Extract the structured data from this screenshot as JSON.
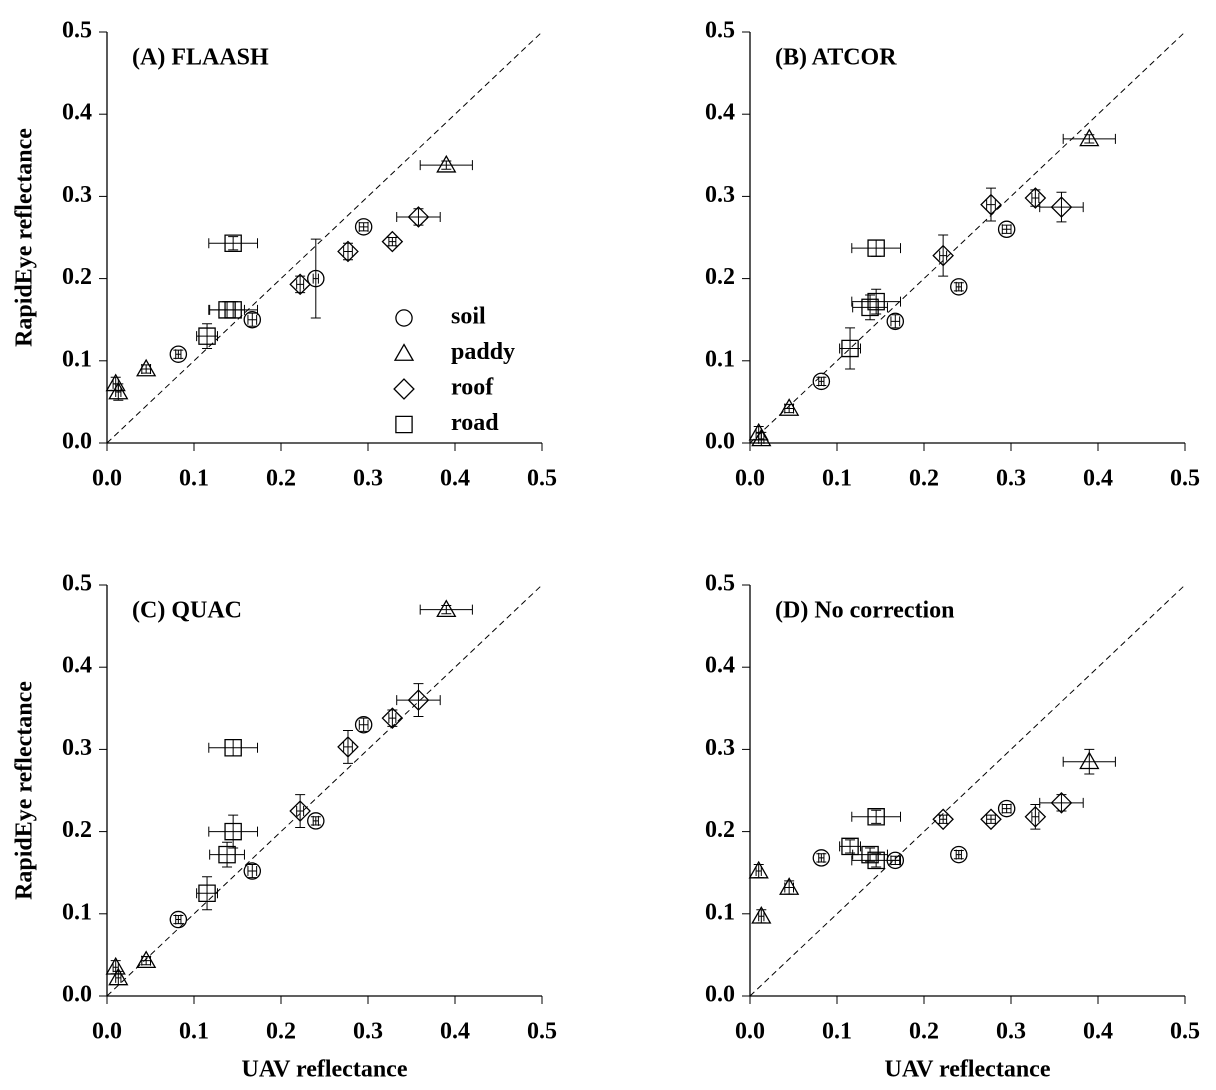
{
  "chart_data": [
    {
      "type": "scatter",
      "annotation": "(A) FLAASH",
      "ylabel": "RapidEye reflectance",
      "xlim": [
        0,
        0.5
      ],
      "ylim": [
        0,
        0.5
      ],
      "xticks": [
        {
          "value": 0,
          "label": "0.0"
        },
        0.1,
        0.2,
        0.3,
        0.4,
        0.5
      ],
      "yticks": [
        {
          "value": 0,
          "label": "0.0"
        },
        0.1,
        0.2,
        0.3,
        0.4,
        0.5
      ],
      "legend": "lower right",
      "color": "#000000",
      "series": [
        {
          "name": "soil",
          "marker": "circle",
          "x": [
            0.082,
            0.167,
            0.24,
            0.295
          ],
          "xerr": [
            0.003,
            0.005,
            0.003,
            0.005
          ],
          "values": [
            0.108,
            0.15,
            0.2,
            0.263
          ],
          "yerr": [
            0.005,
            0.008,
            0.048,
            0.005
          ]
        },
        {
          "name": "paddy",
          "marker": "triangle",
          "x": [
            0.01,
            0.013,
            0.045,
            0.39
          ],
          "xerr": [
            0.003,
            0.003,
            0.005,
            0.03
          ],
          "values": [
            0.072,
            0.062,
            0.09,
            0.338
          ],
          "yerr": [
            0.008,
            0.01,
            0.005,
            0.005
          ]
        },
        {
          "name": "roof",
          "marker": "diamond",
          "x": [
            0.222,
            0.277,
            0.328,
            0.358
          ],
          "xerr": [
            0.004,
            0.005,
            0.004,
            0.025
          ],
          "values": [
            0.193,
            0.233,
            0.245,
            0.275
          ],
          "yerr": [
            0.01,
            0.01,
            0.005,
            0.01
          ]
        },
        {
          "name": "road",
          "marker": "square",
          "x": [
            0.115,
            0.138,
            0.145,
            0.145
          ],
          "xerr": [
            0.012,
            0.02,
            0.028,
            0.028
          ],
          "values": [
            0.13,
            0.162,
            0.162,
            0.243
          ],
          "yerr": [
            0.015,
            0.01,
            0.01,
            0.008
          ]
        }
      ]
    },
    {
      "type": "scatter",
      "annotation": "(B) ATCOR",
      "xlim": [
        0,
        0.5
      ],
      "ylim": [
        0,
        0.5
      ],
      "xticks": [
        {
          "value": 0,
          "label": "0.0"
        },
        0.1,
        0.2,
        0.3,
        0.4,
        0.5
      ],
      "yticks": [
        {
          "value": 0,
          "label": "0.0"
        },
        0.1,
        0.2,
        0.3,
        0.4,
        0.5
      ],
      "color": "#000000",
      "series": [
        {
          "marker": "circle",
          "x": [
            0.082,
            0.167,
            0.24,
            0.295
          ],
          "xerr": [
            0.003,
            0.005,
            0.003,
            0.005
          ],
          "values": [
            0.075,
            0.148,
            0.19,
            0.26
          ],
          "yerr": [
            0.005,
            0.008,
            0.005,
            0.005
          ]
        },
        {
          "marker": "triangle",
          "x": [
            0.01,
            0.013,
            0.045,
            0.39
          ],
          "xerr": [
            0.003,
            0.003,
            0.005,
            0.03
          ],
          "values": [
            0.012,
            0.005,
            0.042,
            0.37
          ],
          "yerr": [
            0.008,
            0.008,
            0.005,
            0.005
          ]
        },
        {
          "marker": "diamond",
          "x": [
            0.222,
            0.277,
            0.328,
            0.358
          ],
          "xerr": [
            0.004,
            0.005,
            0.004,
            0.025
          ],
          "values": [
            0.228,
            0.29,
            0.298,
            0.287
          ],
          "yerr": [
            0.025,
            0.02,
            0.01,
            0.018
          ]
        },
        {
          "marker": "square",
          "x": [
            0.115,
            0.138,
            0.145,
            0.145
          ],
          "xerr": [
            0.012,
            0.02,
            0.028,
            0.028
          ],
          "values": [
            0.115,
            0.165,
            0.172,
            0.237
          ],
          "yerr": [
            0.025,
            0.015,
            0.015,
            0.01
          ]
        }
      ]
    },
    {
      "type": "scatter",
      "annotation": "(C) QUAC",
      "ylabel": "RapidEye reflectance",
      "xlabel": "UAV reflectance",
      "xlim": [
        0,
        0.5
      ],
      "ylim": [
        0,
        0.5
      ],
      "xticks": [
        {
          "value": 0,
          "label": "0.0"
        },
        0.1,
        0.2,
        0.3,
        0.4,
        0.5
      ],
      "yticks": [
        {
          "value": 0,
          "label": "0.0"
        },
        0.1,
        0.2,
        0.3,
        0.4,
        0.5
      ],
      "color": "#000000",
      "series": [
        {
          "marker": "circle",
          "x": [
            0.082,
            0.167,
            0.24,
            0.295
          ],
          "xerr": [
            0.003,
            0.005,
            0.003,
            0.005
          ],
          "values": [
            0.093,
            0.152,
            0.213,
            0.33
          ],
          "yerr": [
            0.005,
            0.008,
            0.005,
            0.008
          ]
        },
        {
          "marker": "triangle",
          "x": [
            0.01,
            0.013,
            0.045,
            0.39
          ],
          "xerr": [
            0.003,
            0.003,
            0.005,
            0.03
          ],
          "values": [
            0.035,
            0.022,
            0.043,
            0.47
          ],
          "yerr": [
            0.008,
            0.008,
            0.005,
            0.005
          ]
        },
        {
          "marker": "diamond",
          "x": [
            0.222,
            0.277,
            0.328,
            0.358
          ],
          "xerr": [
            0.004,
            0.005,
            0.004,
            0.025
          ],
          "values": [
            0.225,
            0.303,
            0.338,
            0.36
          ],
          "yerr": [
            0.02,
            0.02,
            0.01,
            0.02
          ]
        },
        {
          "marker": "square",
          "x": [
            0.115,
            0.138,
            0.145,
            0.145
          ],
          "xerr": [
            0.012,
            0.02,
            0.028,
            0.028
          ],
          "values": [
            0.125,
            0.172,
            0.2,
            0.302
          ],
          "yerr": [
            0.02,
            0.015,
            0.02,
            0.01
          ]
        }
      ]
    },
    {
      "type": "scatter",
      "annotation": "(D) No correction",
      "xlabel": "UAV reflectance",
      "xlim": [
        0,
        0.5
      ],
      "ylim": [
        0,
        0.5
      ],
      "xticks": [
        {
          "value": 0,
          "label": "0.0"
        },
        0.1,
        0.2,
        0.3,
        0.4,
        0.5
      ],
      "yticks": [
        {
          "value": 0,
          "label": "0.0"
        },
        0.1,
        0.2,
        0.3,
        0.4,
        0.5
      ],
      "color": "#000000",
      "series": [
        {
          "marker": "circle",
          "x": [
            0.082,
            0.167,
            0.24,
            0.295
          ],
          "xerr": [
            0.003,
            0.005,
            0.003,
            0.005
          ],
          "values": [
            0.168,
            0.165,
            0.172,
            0.228
          ],
          "yerr": [
            0.005,
            0.005,
            0.005,
            0.005
          ]
        },
        {
          "marker": "triangle",
          "x": [
            0.01,
            0.013,
            0.045,
            0.39
          ],
          "xerr": [
            0.003,
            0.003,
            0.005,
            0.03
          ],
          "values": [
            0.152,
            0.097,
            0.132,
            0.285
          ],
          "yerr": [
            0.008,
            0.008,
            0.008,
            0.015
          ]
        },
        {
          "marker": "diamond",
          "x": [
            0.222,
            0.277,
            0.328,
            0.358
          ],
          "xerr": [
            0.004,
            0.005,
            0.004,
            0.025
          ],
          "values": [
            0.215,
            0.215,
            0.218,
            0.235
          ],
          "yerr": [
            0.005,
            0.005,
            0.015,
            0.01
          ]
        },
        {
          "marker": "square",
          "x": [
            0.115,
            0.138,
            0.145,
            0.145
          ],
          "xerr": [
            0.012,
            0.02,
            0.028,
            0.028
          ],
          "values": [
            0.182,
            0.172,
            0.165,
            0.218
          ],
          "yerr": [
            0.008,
            0.008,
            0.008,
            0.008
          ]
        }
      ]
    }
  ]
}
